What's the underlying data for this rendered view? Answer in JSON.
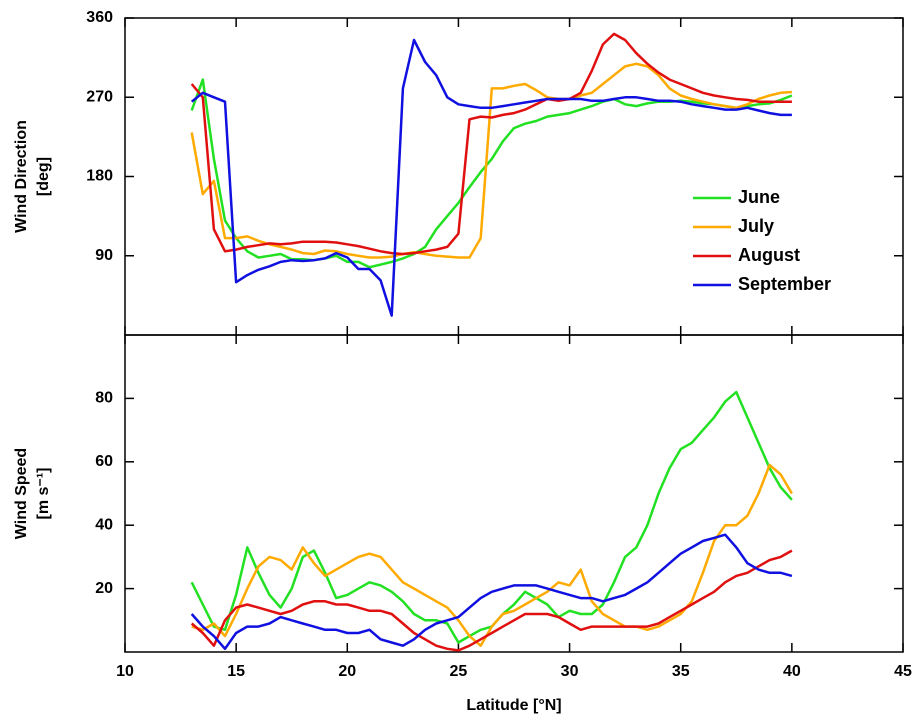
{
  "chart_data": [
    {
      "type": "line",
      "ylabel": [
        "Wind Direction",
        "[deg]"
      ],
      "legend": "right",
      "xlim": [
        10,
        45
      ],
      "xticks": [
        10,
        15,
        20,
        25,
        30,
        35,
        40,
        45
      ],
      "ylim": [
        0,
        360
      ],
      "yticks": [
        90,
        180,
        270,
        360
      ],
      "x": [
        13,
        13.5,
        14,
        14.5,
        15,
        15.5,
        16,
        16.5,
        17,
        17.5,
        18,
        18.5,
        19,
        19.5,
        20,
        20.5,
        21,
        21.5,
        22,
        22.5,
        23,
        23.5,
        24,
        24.5,
        25,
        25.5,
        26,
        26.5,
        27,
        27.5,
        28,
        28.5,
        29,
        29.5,
        30,
        30.5,
        31,
        31.5,
        32,
        32.5,
        33,
        33.5,
        34,
        34.5,
        35,
        35.5,
        36,
        36.5,
        37,
        37.5,
        38,
        38.5,
        39,
        39.5,
        40
      ],
      "series": [
        {
          "name": "June",
          "color": "#22e022",
          "values": [
            255,
            290,
            200,
            130,
            110,
            95,
            88,
            90,
            92,
            86,
            86,
            85,
            87,
            90,
            83,
            83,
            77,
            80,
            83,
            87,
            92,
            100,
            120,
            135,
            150,
            168,
            185,
            200,
            220,
            235,
            240,
            243,
            248,
            250,
            252,
            256,
            260,
            265,
            268,
            262,
            260,
            263,
            265,
            265,
            266,
            265,
            263,
            262,
            260,
            258,
            260,
            262,
            263,
            267,
            272
          ]
        },
        {
          "name": "July",
          "color": "#ffaa00",
          "values": [
            230,
            160,
            175,
            110,
            110,
            112,
            107,
            103,
            100,
            97,
            93,
            92,
            96,
            95,
            92,
            90,
            88,
            88,
            89,
            92,
            94,
            92,
            90,
            89,
            88,
            88,
            110,
            280,
            280,
            283,
            285,
            278,
            270,
            268,
            268,
            272,
            275,
            285,
            295,
            305,
            308,
            305,
            295,
            280,
            272,
            268,
            265,
            262,
            260,
            258,
            262,
            268,
            272,
            275,
            276
          ]
        },
        {
          "name": "August",
          "color": "#e01010",
          "values": [
            285,
            270,
            120,
            95,
            97,
            100,
            102,
            104,
            103,
            104,
            106,
            106,
            106,
            105,
            103,
            101,
            98,
            95,
            93,
            92,
            93,
            95,
            97,
            100,
            115,
            245,
            248,
            247,
            250,
            252,
            256,
            262,
            268,
            266,
            268,
            275,
            300,
            330,
            342,
            335,
            320,
            308,
            298,
            290,
            285,
            280,
            275,
            272,
            270,
            268,
            267,
            265,
            265,
            265,
            265
          ]
        },
        {
          "name": "September",
          "color": "#1010e0",
          "values": [
            265,
            275,
            270,
            265,
            60,
            68,
            74,
            78,
            83,
            85,
            84,
            85,
            87,
            93,
            88,
            75,
            75,
            62,
            22,
            280,
            335,
            310,
            295,
            270,
            262,
            260,
            258,
            258,
            260,
            262,
            264,
            266,
            268,
            268,
            268,
            268,
            266,
            266,
            268,
            270,
            270,
            268,
            266,
            266,
            265,
            262,
            260,
            258,
            256,
            256,
            258,
            255,
            252,
            250,
            250
          ]
        }
      ]
    },
    {
      "type": "line",
      "ylabel": [
        "Wind Speed",
        "[m s⁻¹]"
      ],
      "xlabel": "Latitude [°N]",
      "xlim": [
        10,
        45
      ],
      "xticks": [
        10,
        15,
        20,
        25,
        30,
        35,
        40,
        45
      ],
      "ylim": [
        0,
        100
      ],
      "yticks": [
        20,
        40,
        60,
        80
      ],
      "x": [
        13,
        13.5,
        14,
        14.5,
        15,
        15.5,
        16,
        16.5,
        17,
        17.5,
        18,
        18.5,
        19,
        19.5,
        20,
        20.5,
        21,
        21.5,
        22,
        22.5,
        23,
        23.5,
        24,
        24.5,
        25,
        25.5,
        26,
        26.5,
        27,
        27.5,
        28,
        28.5,
        29,
        29.5,
        30,
        30.5,
        31,
        31.5,
        32,
        32.5,
        33,
        33.5,
        34,
        34.5,
        35,
        35.5,
        36,
        36.5,
        37,
        37.5,
        38,
        38.5,
        39,
        39.5,
        40
      ],
      "series": [
        {
          "name": "June",
          "color": "#22e022",
          "values": [
            22,
            15,
            8,
            7,
            18,
            33,
            25,
            18,
            14,
            20,
            30,
            32,
            25,
            17,
            18,
            20,
            22,
            21,
            19,
            16,
            12,
            10,
            10,
            9,
            3,
            5,
            7,
            8,
            12,
            15,
            19,
            17,
            15,
            11,
            13,
            12,
            12,
            15,
            22,
            30,
            33,
            40,
            50,
            58,
            64,
            66,
            70,
            74,
            79,
            82,
            74,
            66,
            58,
            52,
            48
          ]
        },
        {
          "name": "July",
          "color": "#ffaa00",
          "values": [
            8,
            7,
            9,
            5,
            12,
            20,
            27,
            30,
            29,
            26,
            33,
            28,
            24,
            26,
            28,
            30,
            31,
            30,
            26,
            22,
            20,
            18,
            16,
            14,
            10,
            5,
            2,
            8,
            12,
            13,
            15,
            17,
            19,
            22,
            21,
            26,
            16,
            12,
            10,
            8,
            8,
            7,
            8,
            10,
            12,
            16,
            25,
            35,
            40,
            40,
            43,
            50,
            59,
            56,
            50
          ]
        },
        {
          "name": "August",
          "color": "#e01010",
          "values": [
            9,
            6,
            2,
            10,
            14,
            15,
            14,
            13,
            12,
            13,
            15,
            16,
            16,
            15,
            15,
            14,
            13,
            13,
            12,
            9,
            6,
            4,
            2,
            1,
            0.5,
            2,
            4,
            6,
            8,
            10,
            12,
            12,
            12,
            11,
            9,
            7,
            8,
            8,
            8,
            8,
            8,
            8,
            9,
            11,
            13,
            15,
            17,
            19,
            22,
            24,
            25,
            27,
            29,
            30,
            32
          ]
        },
        {
          "name": "September",
          "color": "#1010e0",
          "values": [
            12,
            8,
            5,
            1,
            6,
            8,
            8,
            9,
            11,
            10,
            9,
            8,
            7,
            7,
            6,
            6,
            7,
            4,
            3,
            2,
            4,
            7,
            9,
            10,
            11,
            14,
            17,
            19,
            20,
            21,
            21,
            21,
            20,
            19,
            18,
            17,
            17,
            16,
            17,
            18,
            20,
            22,
            25,
            28,
            31,
            33,
            35,
            36,
            37,
            33,
            28,
            26,
            25,
            25,
            24
          ]
        }
      ]
    }
  ]
}
